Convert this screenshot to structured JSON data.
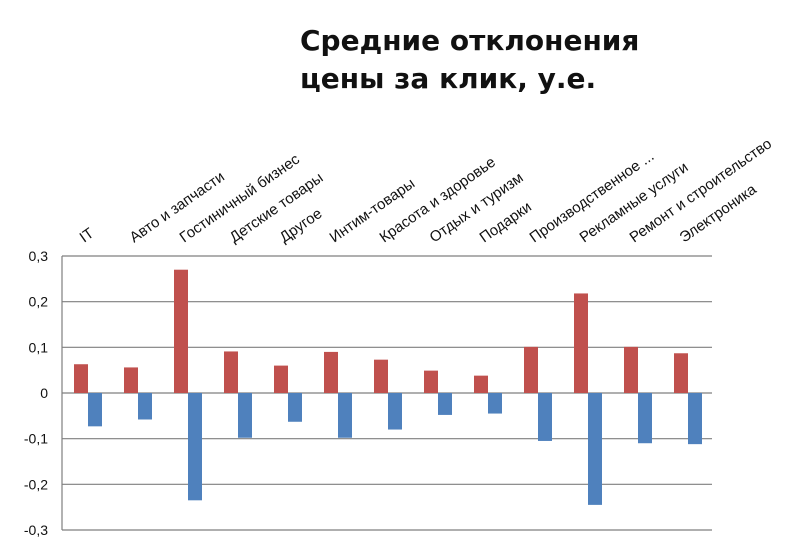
{
  "chart_data": {
    "type": "bar",
    "title_lines": [
      "Средние отклонения",
      "цены за клик, у.е."
    ],
    "categories": [
      "IT",
      "Авто и запчасти",
      "Гостиничный бизнес",
      "Детские товары",
      "Другое",
      "Интим-товары",
      "Красота и здоровье",
      "Отдых и туризм",
      "Подарки",
      "Производственное ...",
      "Рекламные услуги",
      "Ремонт и строительство",
      "Электроника"
    ],
    "series": [
      {
        "color": "#c0504d",
        "values": [
          0.063,
          0.056,
          0.27,
          0.091,
          0.06,
          0.09,
          0.073,
          0.049,
          0.038,
          0.101,
          0.218,
          0.101,
          0.087
        ]
      },
      {
        "color": "#4f81bd",
        "values": [
          -0.073,
          -0.058,
          -0.235,
          -0.098,
          -0.063,
          -0.098,
          -0.08,
          -0.048,
          -0.045,
          -0.105,
          -0.245,
          -0.11,
          -0.112
        ]
      }
    ],
    "ylim": [
      -0.3,
      0.3
    ],
    "yticks": [
      -0.3,
      -0.2,
      -0.1,
      0,
      0.1,
      0.2,
      0.3
    ],
    "ytick_labels": [
      "-0,3",
      "-0,2",
      "-0,1",
      "0",
      "0,1",
      "0,2",
      "0,3"
    ],
    "grid": true,
    "legend": "none"
  }
}
